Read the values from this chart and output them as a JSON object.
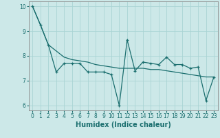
{
  "xlabel": "Humidex (Indice chaleur)",
  "background_color": "#cce8e8",
  "grid_color": "#aad4d4",
  "line_color": "#1a6e6e",
  "xlim": [
    -0.5,
    23.5
  ],
  "ylim": [
    5.8,
    10.2
  ],
  "xticks": [
    0,
    1,
    2,
    3,
    4,
    5,
    6,
    7,
    8,
    9,
    10,
    11,
    12,
    13,
    14,
    15,
    16,
    17,
    18,
    19,
    20,
    21,
    22,
    23
  ],
  "yticks": [
    6,
    7,
    8,
    9,
    10
  ],
  "series1_x": [
    0,
    1,
    2,
    3,
    4,
    5,
    6,
    7,
    8,
    9,
    10,
    11,
    12,
    13,
    14,
    15,
    16,
    17,
    18,
    19,
    20,
    21,
    22,
    23
  ],
  "series1_y": [
    10.0,
    9.25,
    8.45,
    7.35,
    7.7,
    7.7,
    7.7,
    7.35,
    7.35,
    7.35,
    7.25,
    6.0,
    8.65,
    7.4,
    7.75,
    7.7,
    7.65,
    7.95,
    7.65,
    7.65,
    7.5,
    7.55,
    6.2,
    7.15
  ],
  "series2_x": [
    0,
    1,
    2,
    3,
    4,
    5,
    6,
    7,
    8,
    9,
    10,
    11,
    12,
    13,
    14,
    15,
    16,
    17,
    18,
    19,
    20,
    21,
    22,
    23
  ],
  "series2_y": [
    10.0,
    9.25,
    8.45,
    8.2,
    7.95,
    7.85,
    7.8,
    7.75,
    7.65,
    7.6,
    7.55,
    7.5,
    7.5,
    7.5,
    7.5,
    7.45,
    7.45,
    7.4,
    7.35,
    7.3,
    7.25,
    7.2,
    7.15,
    7.15
  ],
  "tick_fontsize": 5.5,
  "xlabel_fontsize": 7.0,
  "linewidth": 0.9,
  "marker_size": 3.5
}
